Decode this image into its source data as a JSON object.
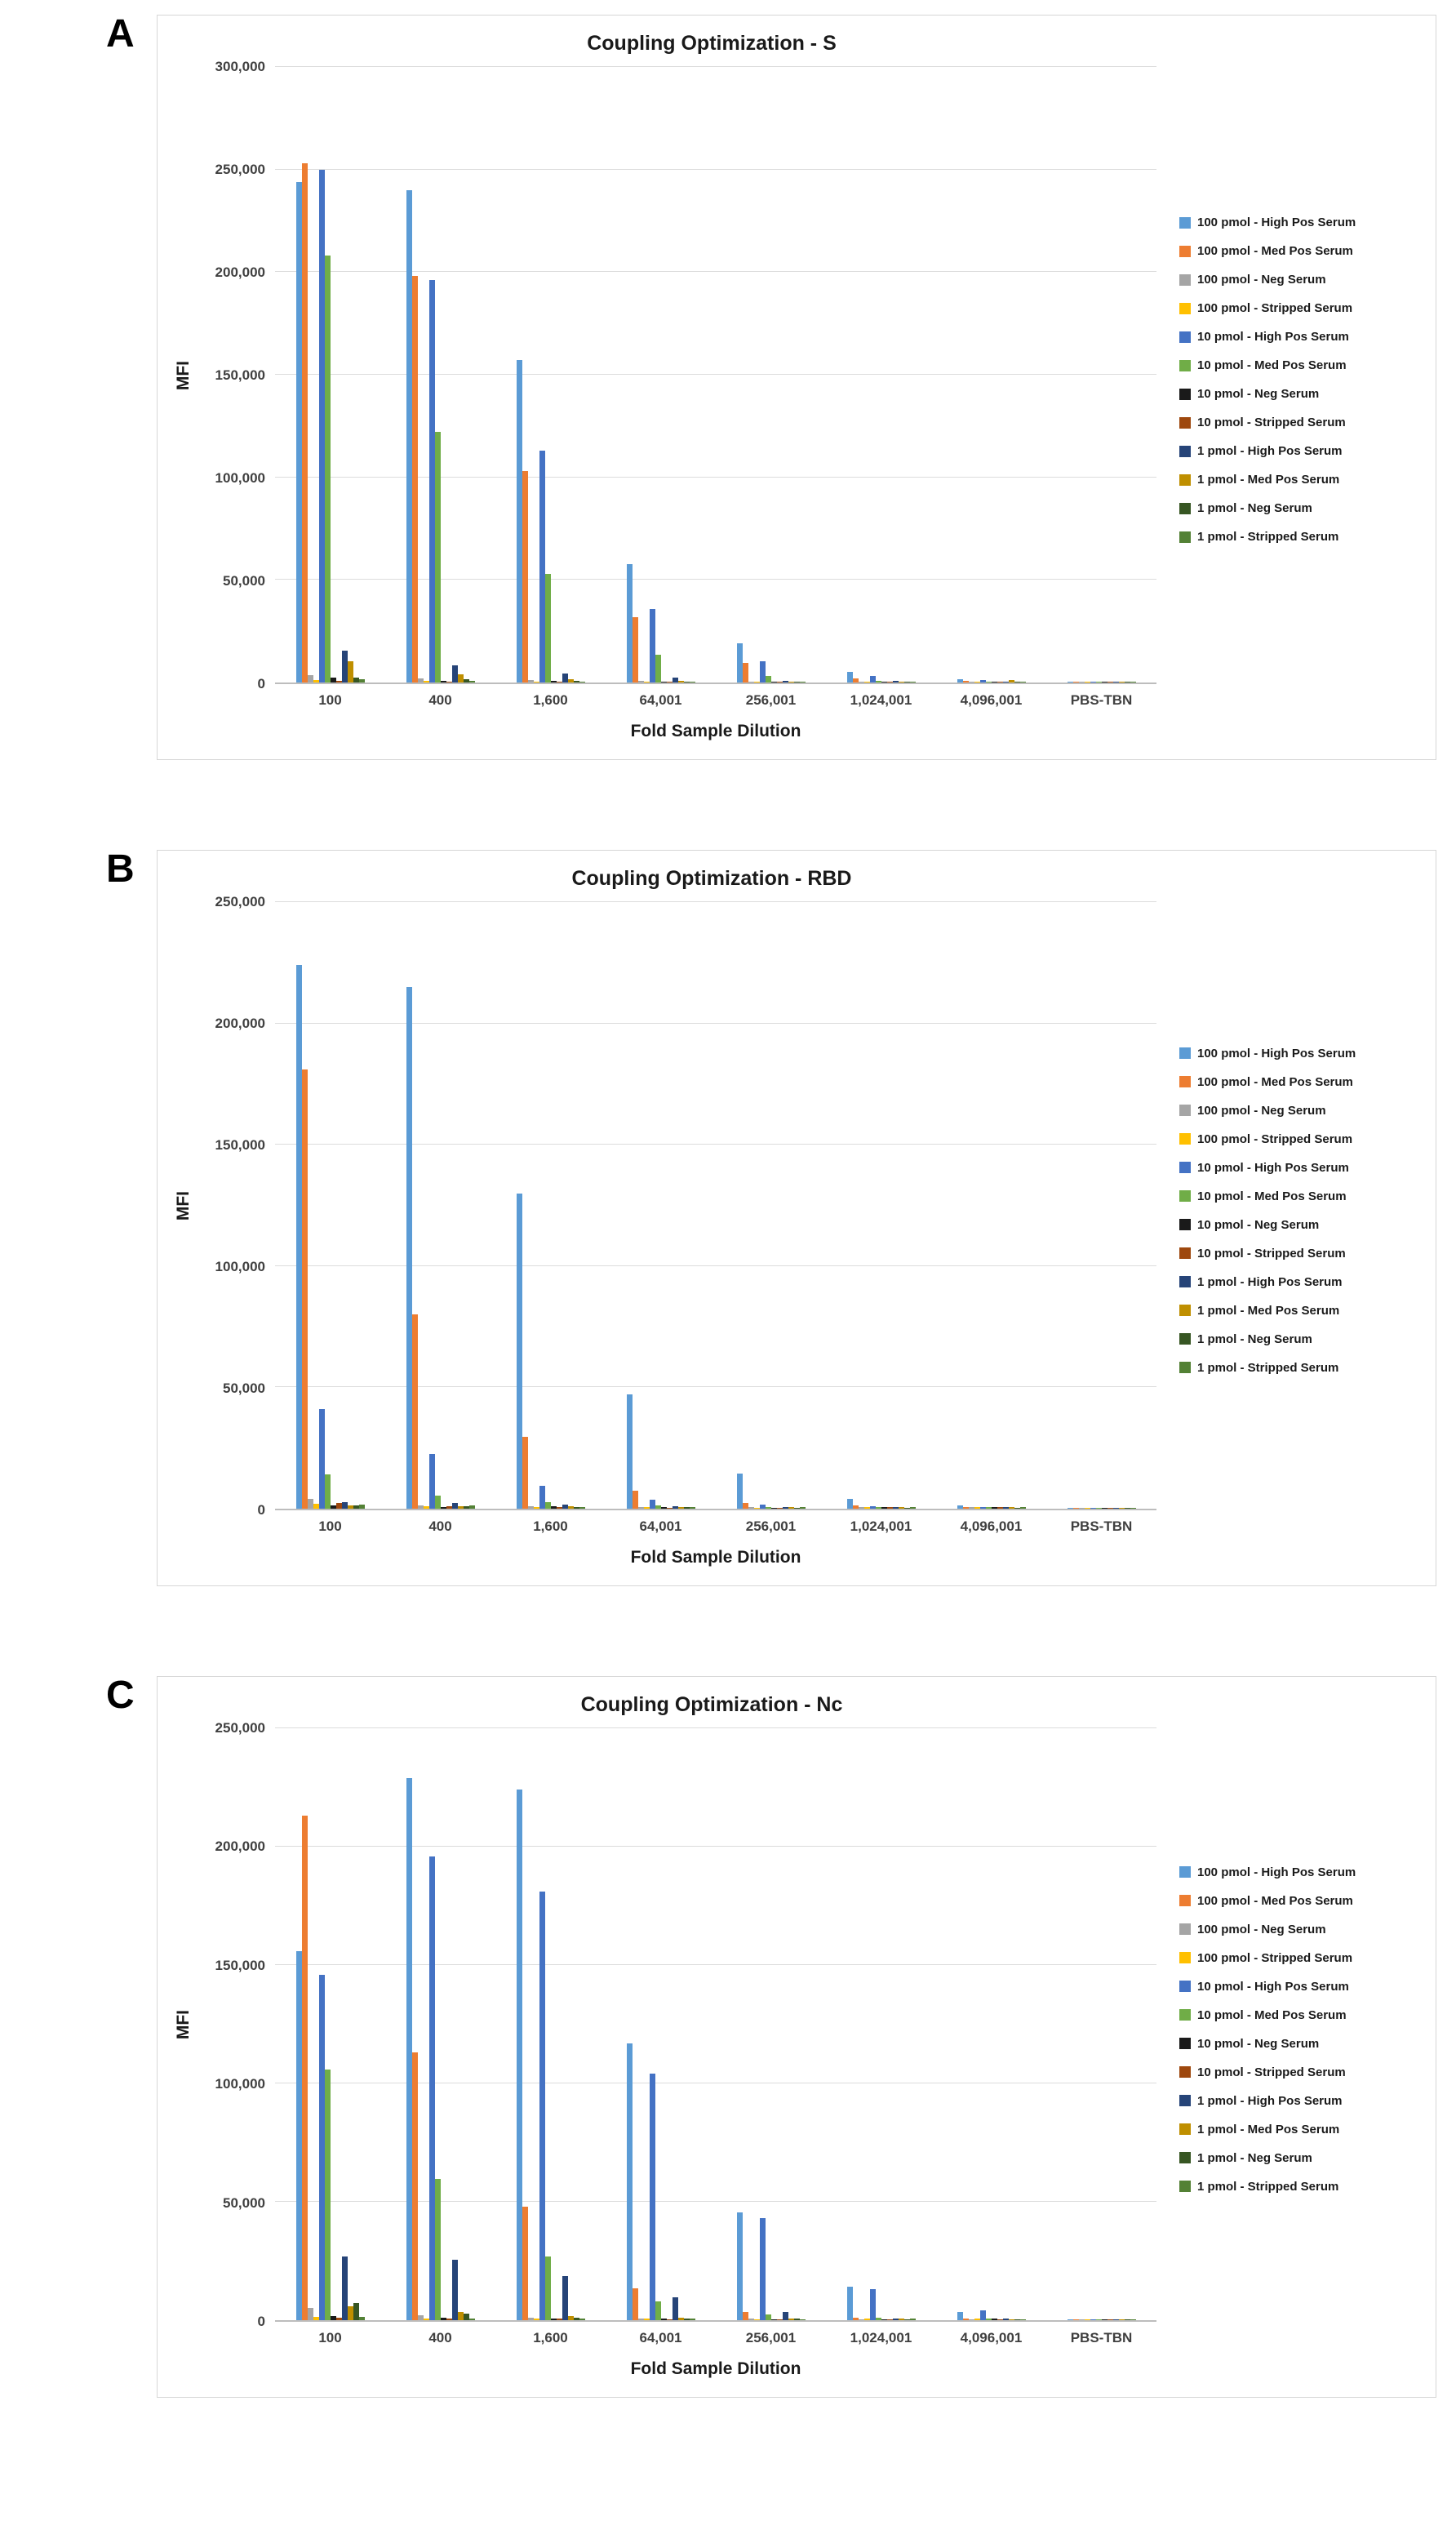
{
  "figure": {
    "panel_labels": [
      "A",
      "B",
      "C"
    ]
  },
  "chart_data": [
    {
      "type": "bar",
      "title": "Coupling Optimization - S",
      "xlabel": "Fold Sample Dilution",
      "ylabel": "MFI",
      "ylim": [
        0,
        300000
      ],
      "ytick_interval": 50000,
      "ytick_labels": [
        "0",
        "50,000",
        "100,000",
        "150,000",
        "200,000",
        "250,000",
        "300,000"
      ],
      "grid": true,
      "legend_position": "right",
      "categories": [
        "100",
        "400",
        "1,600",
        "64,001",
        "256,001",
        "1,024,001",
        "4,096,001",
        "PBS-TBN"
      ],
      "series": [
        {
          "name": "100 pmol - High Pos Serum",
          "color": "#5B9BD5",
          "values": [
            244000,
            240000,
            157000,
            57500,
            19000,
            5000,
            1500,
            400
          ]
        },
        {
          "name": "100 pmol - Med Pos Serum",
          "color": "#ED7D31",
          "values": [
            253000,
            198000,
            103000,
            32000,
            9500,
            2000,
            900,
            300
          ]
        },
        {
          "name": "100 pmol - Neg Serum",
          "color": "#A5A5A5",
          "values": [
            3500,
            2000,
            1200,
            800,
            600,
            500,
            400,
            250
          ]
        },
        {
          "name": "100 pmol - Stripped Serum",
          "color": "#FFC000",
          "values": [
            1200,
            800,
            600,
            500,
            400,
            400,
            350,
            250
          ]
        },
        {
          "name": "10 pmol - High Pos Serum",
          "color": "#4472C4",
          "values": [
            250000,
            196000,
            113000,
            36000,
            10500,
            3000,
            1200,
            350
          ]
        },
        {
          "name": "10 pmol - Med Pos Serum",
          "color": "#70AD47",
          "values": [
            208000,
            122000,
            53000,
            13500,
            3000,
            1000,
            600,
            300
          ]
        },
        {
          "name": "10 pmol - Neg Serum",
          "color": "#1A1A1A",
          "values": [
            2500,
            900,
            700,
            600,
            500,
            400,
            400,
            250
          ]
        },
        {
          "name": "10 pmol - Stripped Serum",
          "color": "#9E480E",
          "values": [
            1000,
            600,
            500,
            400,
            400,
            350,
            350,
            250
          ]
        },
        {
          "name": "1 pmol - High Pos Serum",
          "color": "#264478",
          "values": [
            15500,
            8500,
            4200,
            2200,
            1000,
            700,
            500,
            300
          ]
        },
        {
          "name": "1 pmol - Med Pos Serum",
          "color": "#BF8F00",
          "values": [
            10500,
            4000,
            1600,
            900,
            600,
            500,
            1300,
            300
          ]
        },
        {
          "name": "1 pmol - Neg Serum",
          "color": "#375623",
          "values": [
            2500,
            1400,
            800,
            600,
            500,
            400,
            400,
            250
          ]
        },
        {
          "name": "1 pmol - Stripped Serum",
          "color": "#538135",
          "values": [
            1500,
            900,
            600,
            500,
            400,
            350,
            350,
            250
          ]
        }
      ]
    },
    {
      "type": "bar",
      "title": "Coupling Optimization - RBD",
      "xlabel": "Fold Sample Dilution",
      "ylabel": "MFI",
      "ylim": [
        0,
        250000
      ],
      "ytick_interval": 50000,
      "ytick_labels": [
        "0",
        "50,000",
        "100,000",
        "150,000",
        "200,000",
        "250,000"
      ],
      "grid": true,
      "legend_position": "right",
      "categories": [
        "100",
        "400",
        "1,600",
        "64,001",
        "256,001",
        "1,024,001",
        "4,096,001",
        "PBS-TBN"
      ],
      "series": [
        {
          "name": "100 pmol - High Pos Serum",
          "color": "#5B9BD5",
          "values": [
            224000,
            215000,
            130000,
            47000,
            14500,
            4000,
            1500,
            500
          ]
        },
        {
          "name": "100 pmol - Med Pos Serum",
          "color": "#ED7D31",
          "values": [
            181000,
            80000,
            29500,
            7500,
            2500,
            1200,
            800,
            400
          ]
        },
        {
          "name": "100 pmol - Neg Serum",
          "color": "#A5A5A5",
          "values": [
            4000,
            1500,
            900,
            700,
            600,
            600,
            700,
            500
          ]
        },
        {
          "name": "100 pmol - Stripped Serum",
          "color": "#FFC000",
          "values": [
            2000,
            900,
            700,
            600,
            500,
            700,
            800,
            500
          ]
        },
        {
          "name": "10 pmol - High Pos Serum",
          "color": "#4472C4",
          "values": [
            41000,
            22500,
            9500,
            3800,
            1800,
            900,
            800,
            500
          ]
        },
        {
          "name": "10 pmol - Med Pos Serum",
          "color": "#70AD47",
          "values": [
            14000,
            5500,
            2800,
            1200,
            800,
            700,
            700,
            500
          ]
        },
        {
          "name": "10 pmol - Neg Serum",
          "color": "#1A1A1A",
          "values": [
            1200,
            800,
            900,
            600,
            500,
            700,
            700,
            500
          ]
        },
        {
          "name": "10 pmol - Stripped Serum",
          "color": "#9E480E",
          "values": [
            2200,
            900,
            600,
            500,
            500,
            600,
            700,
            400
          ]
        },
        {
          "name": "1 pmol - High Pos Serum",
          "color": "#264478",
          "values": [
            2800,
            2500,
            1800,
            1100,
            800,
            700,
            700,
            500
          ]
        },
        {
          "name": "1 pmol - Med Pos Serum",
          "color": "#BF8F00",
          "values": [
            1200,
            900,
            900,
            700,
            600,
            600,
            600,
            400
          ]
        },
        {
          "name": "1 pmol - Neg Serum",
          "color": "#375623",
          "values": [
            1200,
            1000,
            700,
            600,
            500,
            500,
            500,
            400
          ]
        },
        {
          "name": "1 pmol - Stripped Serum",
          "color": "#538135",
          "values": [
            1800,
            1200,
            800,
            700,
            600,
            600,
            600,
            400
          ]
        }
      ]
    },
    {
      "type": "bar",
      "title": "Coupling Optimization - Nc",
      "xlabel": "Fold Sample Dilution",
      "ylabel": "MFI",
      "ylim": [
        0,
        250000
      ],
      "ytick_interval": 50000,
      "ytick_labels": [
        "0",
        "50,000",
        "100,000",
        "150,000",
        "200,000",
        "250,000"
      ],
      "grid": true,
      "legend_position": "right",
      "categories": [
        "100",
        "400",
        "1,600",
        "64,001",
        "256,001",
        "1,024,001",
        "4,096,001",
        "PBS-TBN"
      ],
      "series": [
        {
          "name": "100 pmol - High Pos Serum",
          "color": "#5B9BD5",
          "values": [
            156000,
            229000,
            224000,
            117000,
            45500,
            14000,
            3600,
            500
          ]
        },
        {
          "name": "100 pmol - Med Pos Serum",
          "color": "#ED7D31",
          "values": [
            213000,
            113000,
            48000,
            13500,
            3500,
            1200,
            700,
            400
          ]
        },
        {
          "name": "100 pmol - Neg Serum",
          "color": "#A5A5A5",
          "values": [
            5200,
            2200,
            1000,
            700,
            600,
            500,
            500,
            400
          ]
        },
        {
          "name": "100 pmol - Stripped Serum",
          "color": "#FFC000",
          "values": [
            1500,
            800,
            800,
            600,
            500,
            600,
            600,
            400
          ]
        },
        {
          "name": "10 pmol - High Pos Serum",
          "color": "#4472C4",
          "values": [
            146000,
            196000,
            181000,
            104000,
            43000,
            13200,
            4000,
            500
          ]
        },
        {
          "name": "10 pmol - Med Pos Serum",
          "color": "#70AD47",
          "values": [
            106000,
            59500,
            27000,
            8000,
            2500,
            1200,
            700,
            400
          ]
        },
        {
          "name": "10 pmol - Neg Serum",
          "color": "#1A1A1A",
          "values": [
            1700,
            1000,
            800,
            600,
            500,
            500,
            600,
            400
          ]
        },
        {
          "name": "10 pmol - Stripped Serum",
          "color": "#9E480E",
          "values": [
            1200,
            800,
            700,
            500,
            450,
            500,
            500,
            350
          ]
        },
        {
          "name": "1 pmol - High Pos Serum",
          "color": "#264478",
          "values": [
            27000,
            25500,
            18500,
            9500,
            3400,
            800,
            700,
            400
          ]
        },
        {
          "name": "1 pmol - Med Pos Serum",
          "color": "#BF8F00",
          "values": [
            5800,
            3400,
            1700,
            900,
            700,
            600,
            500,
            350
          ]
        },
        {
          "name": "1 pmol - Neg Serum",
          "color": "#375623",
          "values": [
            7200,
            2700,
            1000,
            700,
            600,
            500,
            500,
            350
          ]
        },
        {
          "name": "1 pmol - Stripped Serum",
          "color": "#538135",
          "values": [
            1400,
            700,
            800,
            600,
            500,
            600,
            500,
            350
          ]
        }
      ]
    }
  ]
}
